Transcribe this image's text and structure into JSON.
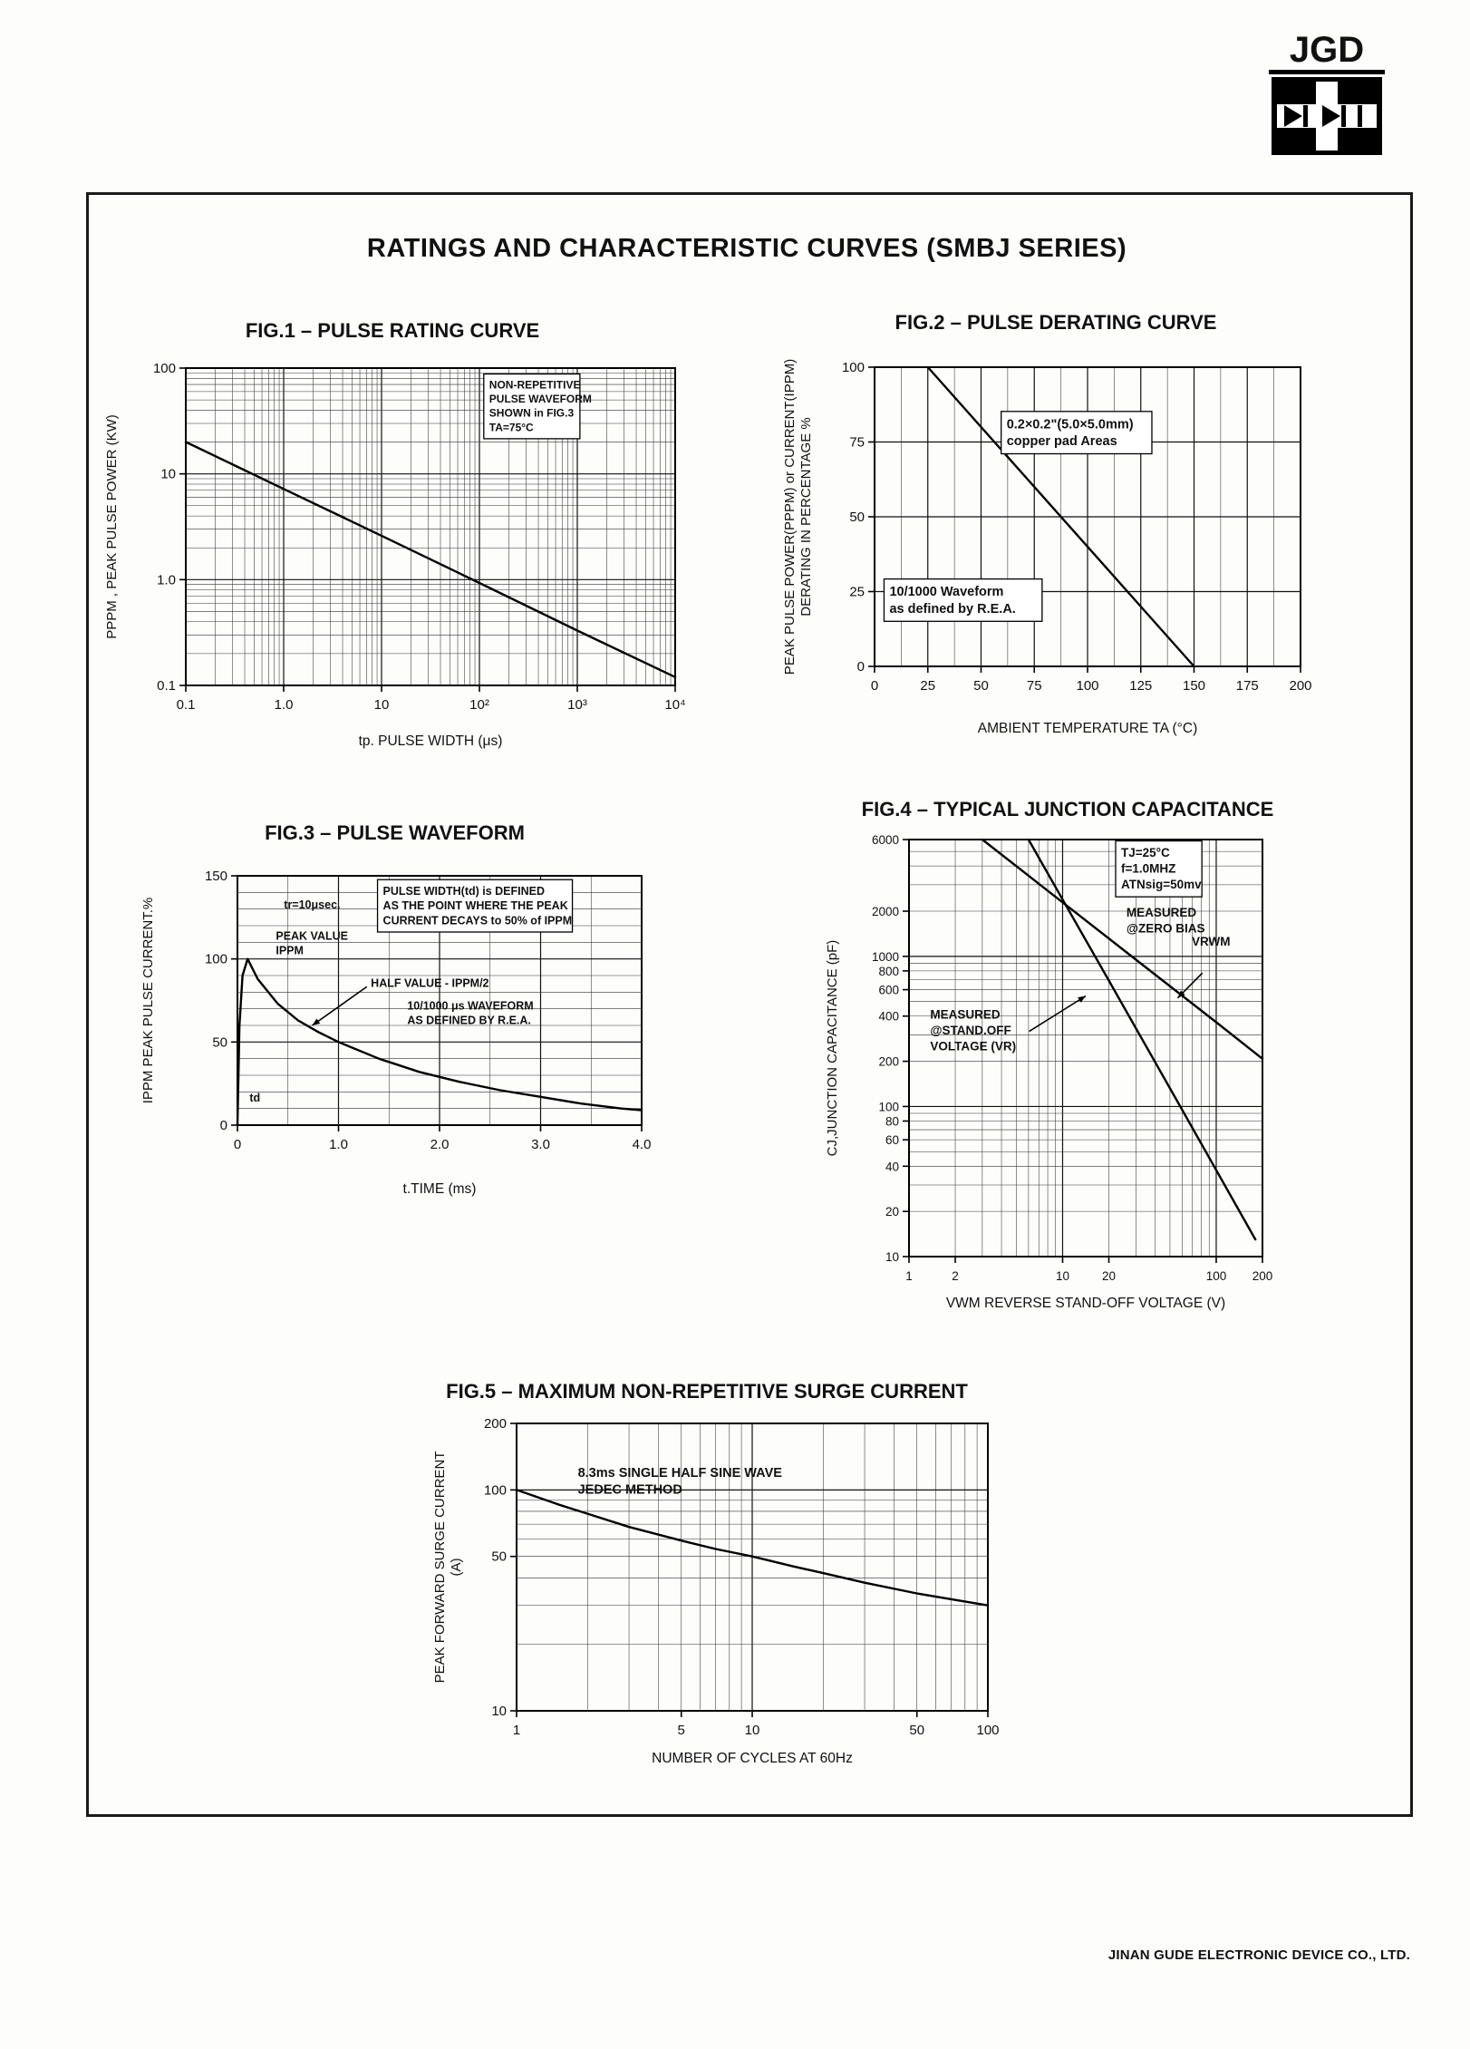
{
  "page": {
    "logo_text": "JGD",
    "main_title": "RATINGS AND CHARACTERISTIC CURVES (SMBJ SERIES)",
    "footer": "JINAN GUDE ELECTRONIC DEVICE CO., LTD."
  },
  "chart_data": [
    {
      "id": "fig1",
      "type": "line",
      "title": "FIG.1 – PULSE RATING CURVE",
      "xlabel": "tp. PULSE WIDTH (μs)",
      "ylabel": [
        "PPPM , PEAK PULSE POWER (KW)"
      ],
      "x_scale": "log",
      "y_scale": "log",
      "xlim": [
        0.1,
        10000
      ],
      "ylim": [
        0.1,
        100
      ],
      "x_ticks": {
        "values": [
          0.1,
          1,
          10,
          100,
          1000,
          10000
        ],
        "labels": [
          "0.1",
          "1.0",
          "10",
          "10²",
          "10³",
          "10⁴"
        ]
      },
      "y_ticks": {
        "values": [
          0.1,
          1,
          10,
          100
        ],
        "labels": [
          "0.1",
          "1.0",
          "10",
          "100"
        ]
      },
      "grid": "log-log",
      "series": [
        {
          "name": "peak-pulse-power",
          "points": [
            [
              0.1,
              20
            ],
            [
              1,
              7.2
            ],
            [
              10,
              2.6
            ],
            [
              100,
              0.93
            ],
            [
              1000,
              0.33
            ],
            [
              10000,
              0.12
            ]
          ]
        }
      ],
      "annotations": [
        {
          "lines": [
            "NON-REPETITIVE",
            "PULSE WAVEFORM",
            "SHOWN in FIG.3",
            "TA=75°C"
          ],
          "fx": 0.62,
          "fy": 0.03,
          "box": true
        }
      ]
    },
    {
      "id": "fig2",
      "type": "line",
      "title": "FIG.2 – PULSE DERATING CURVE",
      "xlabel": "AMBIENT TEMPERATURE TA (°C)",
      "ylabel": [
        "PEAK PULSE POWER(PPPM) or CURRENT(IPPM)",
        "DERATING IN PERCENTAGE %"
      ],
      "x_scale": "linear",
      "y_scale": "linear",
      "xlim": [
        0,
        200
      ],
      "ylim": [
        0,
        100
      ],
      "x_minor": 12.5,
      "x_major": 25,
      "y_minor": 25,
      "y_major": 25,
      "x_ticks": {
        "values": [
          0,
          25,
          50,
          75,
          100,
          125,
          150,
          175,
          200
        ],
        "labels": [
          "0",
          "25",
          "50",
          "75",
          "100",
          "125",
          "150",
          "175",
          "200"
        ]
      },
      "y_ticks": {
        "values": [
          0,
          25,
          50,
          75,
          100
        ],
        "labels": [
          "0",
          "25",
          "50",
          "75",
          "100"
        ]
      },
      "grid": "linear",
      "series": [
        {
          "name": "derating-line",
          "points": [
            [
              25,
              100
            ],
            [
              150,
              0
            ]
          ]
        }
      ],
      "annotations": [
        {
          "lines": [
            "0.2×0.2\"(5.0×5.0mm)",
            "copper pad Areas"
          ],
          "fx": 0.31,
          "fy": 0.16,
          "box": true
        },
        {
          "lines": [
            "10/1000 Waveform",
            "as defined by R.E.A."
          ],
          "fx": 0.035,
          "fy": 0.72,
          "box": true
        }
      ]
    },
    {
      "id": "fig3",
      "type": "line",
      "title": "FIG.3 – PULSE WAVEFORM",
      "xlabel": "t.TIME (ms)",
      "ylabel": [
        "IPPM PEAK PULSE CURRENT.%"
      ],
      "x_scale": "linear",
      "y_scale": "linear",
      "xlim": [
        0,
        4
      ],
      "ylim": [
        0,
        150
      ],
      "x_minor": 0.5,
      "x_major": 1,
      "y_minor": 10,
      "y_major": 50,
      "x_ticks": {
        "values": [
          0,
          1,
          2,
          3,
          4
        ],
        "labels": [
          "0",
          "1.0",
          "2.0",
          "3.0",
          "4.0"
        ]
      },
      "y_ticks": {
        "values": [
          0,
          50,
          100,
          150
        ],
        "labels": [
          "0",
          "50",
          "100",
          "150"
        ]
      },
      "grid": "linear",
      "series": [
        {
          "name": "10-1000us-waveform",
          "points": [
            [
              0,
              0
            ],
            [
              0.02,
              60
            ],
            [
              0.05,
              90
            ],
            [
              0.1,
              100
            ],
            [
              0.2,
              88
            ],
            [
              0.4,
              73
            ],
            [
              0.6,
              63
            ],
            [
              0.8,
              56
            ],
            [
              1.0,
              50
            ],
            [
              1.4,
              40
            ],
            [
              1.8,
              32
            ],
            [
              2.2,
              26
            ],
            [
              2.6,
              21
            ],
            [
              3.0,
              17
            ],
            [
              3.4,
              13
            ],
            [
              3.8,
              10
            ],
            [
              4.0,
              9
            ]
          ]
        }
      ],
      "annotations": [
        {
          "lines": [
            "tr=10μsec."
          ],
          "fx": 0.115,
          "fy": 0.085
        },
        {
          "lines": [
            "PEAK VALUE",
            "IPPM"
          ],
          "fx": 0.095,
          "fy": 0.21
        },
        {
          "lines": [
            "PULSE WIDTH(td) is DEFINED",
            "AS THE POINT WHERE THE PEAK",
            "CURRENT DECAYS to 50% of IPPM"
          ],
          "fx": 0.36,
          "fy": 0.03,
          "box": true
        },
        {
          "lines": [
            "HALF VALUE - IPPM/2"
          ],
          "fx": 0.33,
          "fy": 0.4,
          "arrow": [
            0.32,
            0.445,
            0.185,
            0.6
          ]
        },
        {
          "lines": [
            "10/1000 μs  WAVEFORM",
            "AS DEFINED BY R.E.A."
          ],
          "fx": 0.42,
          "fy": 0.49
        },
        {
          "lines": [
            "td"
          ],
          "fx": 0.03,
          "fy": 0.86
        }
      ]
    },
    {
      "id": "fig4",
      "type": "line",
      "title": "FIG.4 – TYPICAL JUNCTION CAPACITANCE",
      "xlabel": "VWM REVERSE STAND-OFF VOLTAGE (V)",
      "ylabel": [
        "CJ,JUNCTION CAPACITANCE (pF)"
      ],
      "x_scale": "log",
      "y_scale": "log",
      "xlim": [
        1,
        200
      ],
      "ylim": [
        10,
        6000
      ],
      "x_ticks": {
        "values": [
          1,
          2,
          10,
          20,
          100,
          200
        ],
        "labels": [
          "1",
          "2",
          "10",
          "20",
          "100",
          "200"
        ]
      },
      "y_ticks": {
        "values": [
          10,
          20,
          40,
          60,
          80,
          100,
          200,
          400,
          600,
          800,
          1000,
          2000,
          6000
        ],
        "labels": [
          "10",
          "20",
          "40",
          "60",
          "80",
          "100",
          "200",
          "400",
          "600",
          "800",
          "1000",
          "2000",
          "6000"
        ]
      },
      "grid": "log-log",
      "series": [
        {
          "name": "measured-at-zero-bias",
          "points": [
            [
              3,
              6000
            ],
            [
              10,
              2290
            ],
            [
              30,
              950
            ],
            [
              100,
              364
            ],
            [
              200,
              208
            ]
          ]
        },
        {
          "name": "measured-at-stand-off-voltage",
          "points": [
            [
              6,
              6000
            ],
            [
              10,
              2390
            ],
            [
              20,
              690
            ],
            [
              60,
              95
            ],
            [
              180,
              13
            ]
          ]
        }
      ],
      "annotations": [
        {
          "lines": [
            "TJ=25°C",
            "f=1.0MHZ",
            "ATNsig=50mv"
          ],
          "fx": 0.6,
          "fy": 0.012,
          "box": true
        },
        {
          "lines": [
            "MEASURED",
            "@ZERO BIAS"
          ],
          "fx": 0.615,
          "fy": 0.155
        },
        {
          "lines": [
            "MEASURED",
            "@STAND.OFF",
            "VOLTAGE (VR)"
          ],
          "fx": 0.06,
          "fy": 0.4,
          "arrow": [
            0.34,
            0.46,
            0.5,
            0.375
          ]
        },
        {
          "lines": [
            "VRWM"
          ],
          "fx": 0.8,
          "fy": 0.225,
          "arrow": [
            0.83,
            0.32,
            0.76,
            0.38
          ]
        }
      ]
    },
    {
      "id": "fig5",
      "type": "line",
      "title": "FIG.5 – MAXIMUM NON-REPETITIVE SURGE CURRENT",
      "xlabel": "NUMBER OF CYCLES AT 60Hz",
      "ylabel": [
        "PEAK FORWARD SURGE CURRENT",
        "(A)"
      ],
      "x_scale": "log",
      "y_scale": "log",
      "xlim": [
        1,
        100
      ],
      "ylim": [
        10,
        200
      ],
      "x_ticks": {
        "values": [
          1,
          5,
          10,
          50,
          100
        ],
        "labels": [
          "1",
          "5",
          "10",
          "50",
          "100"
        ]
      },
      "y_ticks": {
        "values": [
          10,
          50,
          100,
          200
        ],
        "labels": [
          "10",
          "50",
          "100",
          "200"
        ]
      },
      "grid": "log-log",
      "series": [
        {
          "name": "surge-current",
          "points": [
            [
              1,
              100
            ],
            [
              1.5,
              86
            ],
            [
              2,
              78
            ],
            [
              3,
              68
            ],
            [
              5,
              59
            ],
            [
              7,
              54
            ],
            [
              10,
              50
            ],
            [
              15,
              45
            ],
            [
              20,
              42
            ],
            [
              30,
              38
            ],
            [
              50,
              34
            ],
            [
              70,
              32
            ],
            [
              100,
              30
            ]
          ]
        }
      ],
      "annotations": [
        {
          "lines": [
            "8.3ms SINGLE HALF SINE WAVE",
            "JEDEC METHOD"
          ],
          "fx": 0.13,
          "fy": 0.14
        }
      ]
    }
  ]
}
